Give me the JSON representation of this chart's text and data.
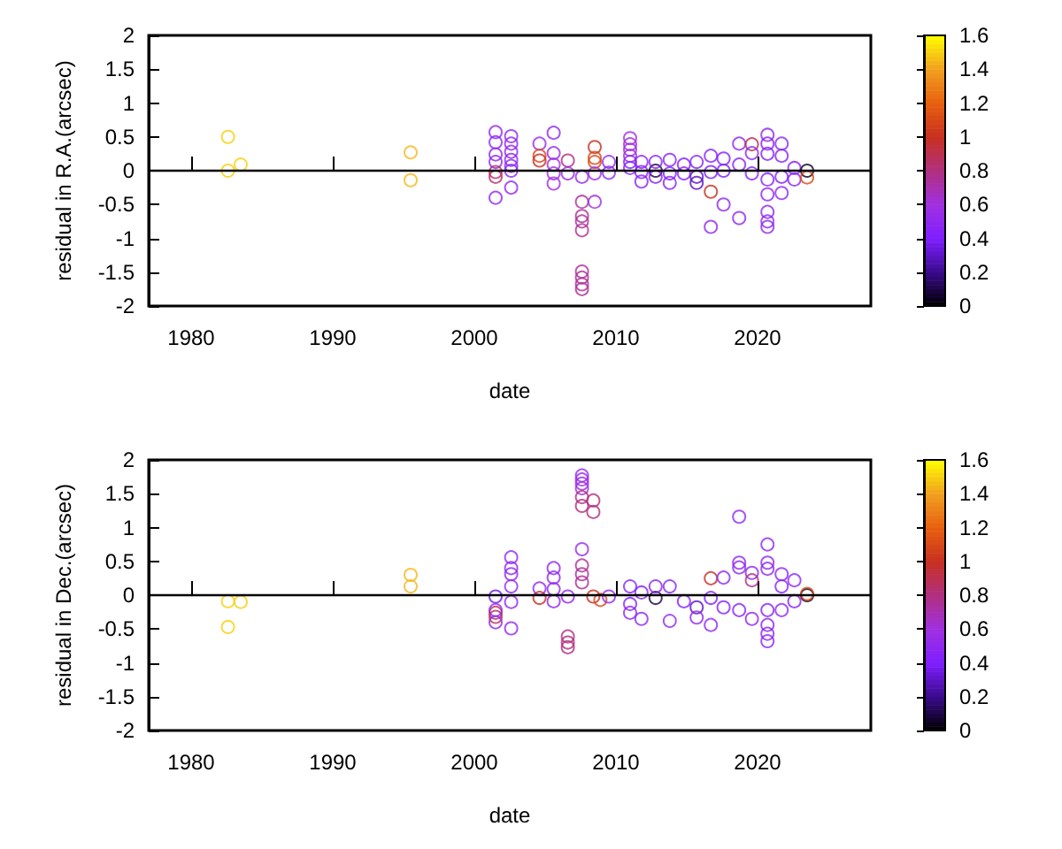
{
  "chart_data": [
    {
      "type": "scatter",
      "xlabel": "date",
      "ylabel": "residual in R.A.(arcsec)",
      "marker": "circle",
      "xlim": [
        1977,
        2028
      ],
      "xticks": [
        1980,
        1990,
        2000,
        2010,
        2020
      ],
      "ylim": [
        -2,
        2
      ],
      "yticks": [
        -2,
        -1.5,
        -1,
        -0.5,
        0,
        0.5,
        1,
        1.5,
        2
      ],
      "clim": [
        0,
        1.6
      ],
      "cticks": [
        0,
        0.2,
        0.4,
        0.6,
        0.8,
        1,
        1.2,
        1.4,
        1.6
      ],
      "ref_lines": [
        {
          "axis": "y",
          "value": 0
        }
      ],
      "x": [
        1982.6,
        1982.6,
        1983.5,
        1995.5,
        1995.5,
        2001.5,
        2001.5,
        2001.5,
        2001.5,
        2001.5,
        2001.5,
        2001.5,
        2002.6,
        2002.6,
        2002.6,
        2002.6,
        2002.6,
        2002.6,
        2002.6,
        2004.6,
        2004.6,
        2004.6,
        2005.6,
        2005.6,
        2005.6,
        2005.6,
        2005.6,
        2006.6,
        2006.6,
        2007.6,
        2007.6,
        2007.6,
        2007.6,
        2007.6,
        2007.6,
        2007.6,
        2007.6,
        2007.6,
        2008.5,
        2008.5,
        2008.5,
        2008.5,
        2008.5,
        2009.5,
        2009.5,
        2011,
        2011,
        2011,
        2011,
        2011,
        2011,
        2011.8,
        2011.8,
        2011.8,
        2012.8,
        2012.8,
        2012.8,
        2013.8,
        2013.8,
        2013.8,
        2014.8,
        2014.8,
        2015.7,
        2015.7,
        2015.7,
        2016.7,
        2016.7,
        2016.7,
        2016.7,
        2017.6,
        2017.6,
        2017.6,
        2018.7,
        2018.7,
        2018.7,
        2019.6,
        2019.6,
        2019.6,
        2020.7,
        2020.7,
        2020.7,
        2020.7,
        2020.7,
        2020.7,
        2020.7,
        2020.7,
        2021.7,
        2021.7,
        2021.7,
        2021.7,
        2022.6,
        2022.6,
        2023.5,
        2023.5
      ],
      "values": [
        0.5,
        0,
        0.09,
        0.27,
        -0.14,
        0.57,
        0.42,
        0.24,
        0.13,
        -0.02,
        -0.09,
        -0.4,
        0.51,
        0.4,
        0.28,
        0.16,
        0.07,
        0,
        -0.25,
        0.4,
        0.22,
        0.15,
        0.56,
        0.26,
        0.09,
        -0.04,
        -0.19,
        0.15,
        -0.04,
        -0.09,
        -0.46,
        -0.67,
        -0.75,
        -0.88,
        -1.49,
        -1.58,
        -1.68,
        -1.75,
        0.35,
        0.19,
        0.13,
        -0.46,
        -0.04,
        0.13,
        -0.03,
        0.48,
        0.39,
        0.31,
        0.22,
        0.13,
        0.04,
        0.13,
        -0.02,
        -0.16,
        0,
        0.13,
        -0.09,
        0.16,
        -0.04,
        -0.18,
        0.09,
        -0.04,
        0.13,
        -0.09,
        -0.18,
        -0.31,
        -0.83,
        0.22,
        -0.02,
        -0.5,
        0.18,
        0,
        -0.7,
        0.4,
        0.09,
        0.39,
        0.26,
        -0.04,
        0.53,
        0.4,
        0.25,
        -0.13,
        -0.35,
        -0.61,
        -0.75,
        -0.83,
        0.4,
        0.22,
        -0.09,
        -0.33,
        0.04,
        -0.13,
        0,
        -0.1
      ],
      "cvalues": [
        1.5,
        1.5,
        1.5,
        1.45,
        1.45,
        0.5,
        0.5,
        0.5,
        0.5,
        0.85,
        0.85,
        0.5,
        0.5,
        0.5,
        0.5,
        0.5,
        0.5,
        0.5,
        0.5,
        0.55,
        1.1,
        1,
        0.5,
        0.55,
        0.6,
        0.6,
        0.6,
        0.8,
        0.55,
        0.55,
        0.75,
        0.75,
        0.75,
        0.75,
        0.75,
        0.75,
        0.75,
        0.75,
        1,
        1.1,
        1.1,
        0.6,
        0.6,
        0.5,
        0.5,
        0.6,
        0.6,
        0.6,
        0.6,
        0.45,
        0.45,
        0.45,
        0.45,
        0.45,
        0.1,
        0.45,
        0.45,
        0.45,
        0.4,
        0.45,
        0.4,
        0.45,
        0.45,
        0.3,
        0.3,
        1,
        0.5,
        0.45,
        0.4,
        0.5,
        0.45,
        0.4,
        0.5,
        0.5,
        0.45,
        0.9,
        0.5,
        0.45,
        0.5,
        0.45,
        0.45,
        0.45,
        0.5,
        0.5,
        0.5,
        0.5,
        0.5,
        0.45,
        0.4,
        0.5,
        0.45,
        0.45,
        0.05,
        1.1
      ]
    },
    {
      "type": "scatter",
      "xlabel": "date",
      "ylabel": "residual in Dec.(arcsec)",
      "marker": "circle",
      "xlim": [
        1977,
        2028
      ],
      "xticks": [
        1980,
        1990,
        2000,
        2010,
        2020
      ],
      "ylim": [
        -2,
        2
      ],
      "yticks": [
        -2,
        -1.5,
        -1,
        -0.5,
        0,
        0.5,
        1,
        1.5,
        2
      ],
      "clim": [
        0,
        1.6
      ],
      "cticks": [
        0,
        0.2,
        0.4,
        0.6,
        0.8,
        1,
        1.2,
        1.4,
        1.6
      ],
      "ref_lines": [
        {
          "axis": "y",
          "value": 0
        }
      ],
      "x": [
        1982.6,
        1982.6,
        1983.5,
        1995.5,
        1995.5,
        2001.5,
        2001.5,
        2001.5,
        2001.5,
        2001.5,
        2002.6,
        2002.6,
        2002.6,
        2002.6,
        2002.6,
        2002.6,
        2004.6,
        2004.6,
        2005.6,
        2005.6,
        2005.6,
        2005.6,
        2006.6,
        2006.6,
        2006.6,
        2006.6,
        2007.6,
        2007.6,
        2007.6,
        2007.6,
        2007.6,
        2007.6,
        2007.6,
        2007.6,
        2007.6,
        2007.6,
        2008.4,
        2008.4,
        2008.4,
        2008.9,
        2009.5,
        2011,
        2011,
        2011,
        2011.8,
        2011.8,
        2012.8,
        2012.8,
        2013.8,
        2013.8,
        2014.8,
        2015.7,
        2015.7,
        2016.7,
        2016.7,
        2016.7,
        2017.6,
        2017.6,
        2018.7,
        2018.7,
        2018.7,
        2018.7,
        2019.6,
        2019.6,
        2019.6,
        2020.7,
        2020.7,
        2020.7,
        2020.7,
        2020.7,
        2020.7,
        2020.7,
        2021.7,
        2021.7,
        2021.7,
        2022.6,
        2022.6,
        2023.5,
        2023.5
      ],
      "values": [
        -0.09,
        -0.47,
        -0.1,
        0.3,
        0.13,
        -0.02,
        -0.26,
        -0.32,
        -0.4,
        -0.22,
        0.56,
        0.4,
        0.31,
        0.13,
        -0.1,
        -0.49,
        0.1,
        -0.04,
        0.4,
        0.26,
        0.09,
        -0.09,
        -0.61,
        -0.7,
        -0.77,
        -0.02,
        1.77,
        1.71,
        1.65,
        1.58,
        1.45,
        1.32,
        0.68,
        0.44,
        0.31,
        0.19,
        1.4,
        1.23,
        -0.02,
        -0.07,
        -0.02,
        0.13,
        -0.13,
        -0.26,
        -0.35,
        0.04,
        -0.04,
        0.13,
        -0.38,
        0.13,
        -0.09,
        -0.18,
        -0.33,
        0.25,
        -0.44,
        -0.04,
        0.26,
        -0.18,
        1.16,
        0.48,
        0.41,
        -0.22,
        -0.35,
        0.33,
        0.22,
        0.75,
        0.48,
        0.39,
        -0.22,
        -0.44,
        -0.57,
        -0.68,
        0.31,
        -0.22,
        0.13,
        0.22,
        -0.09,
        0,
        0.02
      ],
      "cvalues": [
        1.5,
        1.5,
        1.5,
        1.45,
        1.45,
        0.35,
        0.9,
        0.9,
        0.5,
        0.5,
        0.5,
        0.5,
        0.5,
        0.5,
        0.5,
        0.5,
        0.5,
        1,
        0.5,
        0.5,
        0.5,
        0.5,
        0.8,
        0.8,
        0.8,
        0.5,
        0.55,
        0.55,
        0.55,
        0.6,
        0.8,
        0.8,
        0.55,
        0.75,
        0.75,
        0.75,
        0.8,
        0.8,
        1,
        1.1,
        0.5,
        0.45,
        0.45,
        0.5,
        0.5,
        0.45,
        0.1,
        0.45,
        0.5,
        0.45,
        0.4,
        0.3,
        0.5,
        1,
        0.5,
        0.4,
        0.5,
        0.45,
        0.5,
        0.5,
        0.5,
        0.45,
        0.5,
        0.5,
        0.8,
        0.5,
        0.5,
        0.5,
        0.45,
        0.5,
        0.5,
        0.5,
        0.5,
        0.5,
        0.45,
        0.5,
        0.45,
        0.05,
        1.1
      ]
    }
  ]
}
